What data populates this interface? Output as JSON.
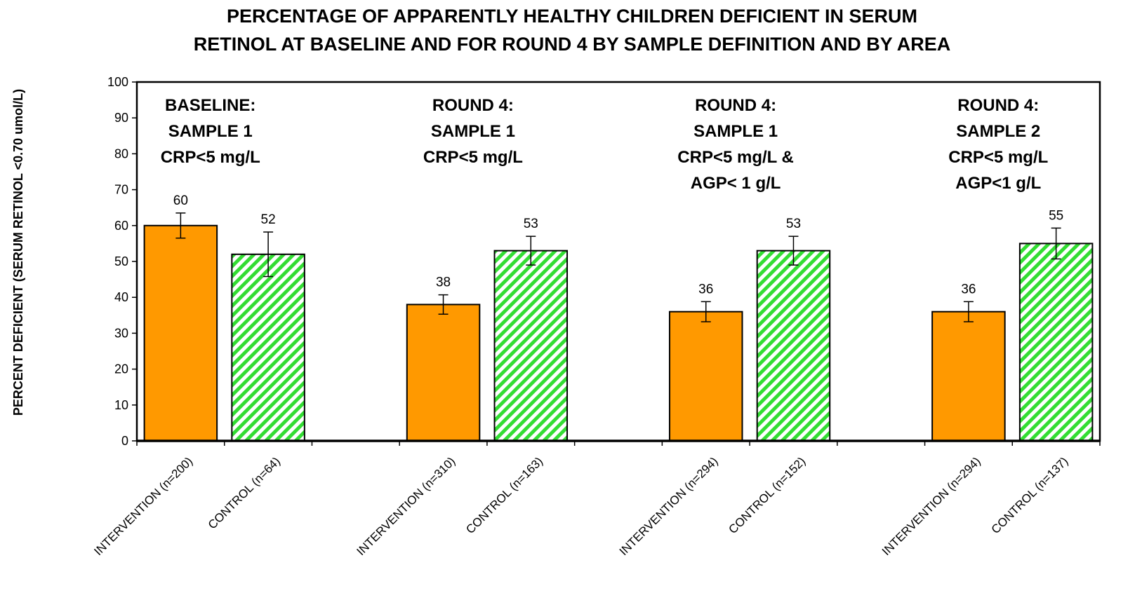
{
  "chart_data": {
    "type": "bar",
    "title": [
      "PERCENTAGE OF APPARENTLY HEALTHY CHILDREN DEFICIENT IN SERUM",
      "RETINOL AT BASELINE AND FOR ROUND 4 BY SAMPLE DEFINITION AND BY AREA"
    ],
    "y_label": "PERCENT DEFICIENT (SERUM RETINOL <0.70 umol/L)",
    "categories": [
      "INTERVENTION (n=200)",
      "CONTROL (n=64)",
      null,
      "INTERVENTION (n=310)",
      "CONTROL (n=163)",
      null,
      "INTERVENTION (n=294)",
      "CONTROL (n=152)",
      null,
      "INTERVENTION (n=294)",
      "CONTROL (n=137)"
    ],
    "values": [
      60,
      52,
      null,
      38,
      53,
      null,
      36,
      53,
      null,
      36,
      55
    ],
    "errors": [
      3.5,
      6.2,
      null,
      2.7,
      4,
      null,
      2.8,
      4,
      null,
      2.8,
      4.3
    ],
    "colors": [
      "#ff9900",
      "#33dd33",
      null,
      "#ff9900",
      "#33dd33",
      null,
      "#ff9900",
      "#33dd33",
      null,
      "#ff9900",
      "#33dd33"
    ],
    "hatched": [
      false,
      true,
      null,
      false,
      true,
      null,
      false,
      true,
      null,
      false,
      true
    ],
    "annotations": [
      [
        "BASELINE:",
        "SAMPLE 1",
        "CRP<5 mg/L"
      ],
      [
        "ROUND 4:",
        "SAMPLE 1",
        "CRP<5 mg/L"
      ],
      [
        "ROUND 4:",
        "SAMPLE 1",
        "CRP<5 mg/L &",
        "AGP< 1 g/L"
      ],
      [
        "ROUND 4:",
        "SAMPLE 2",
        "CRP<5 mg/L",
        "AGP<1 g/L"
      ]
    ],
    "ylim": [
      0,
      100
    ],
    "yticks": [
      0,
      10,
      20,
      30,
      40,
      50,
      60,
      70,
      80,
      90,
      100
    ]
  }
}
